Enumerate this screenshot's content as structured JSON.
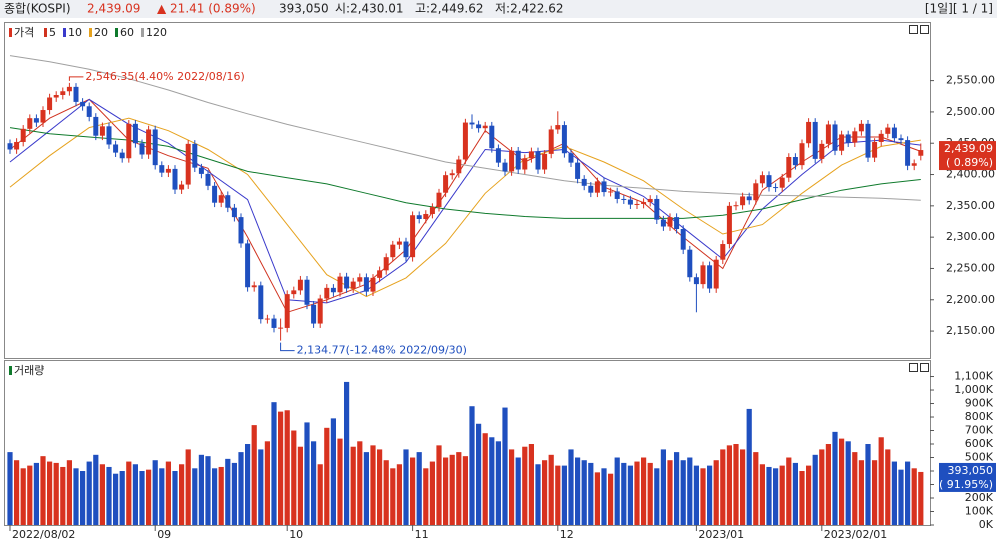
{
  "header": {
    "name": "종합(KOSPI)",
    "price": "2,439.09",
    "change": "▲ 21.41 (0.89%)",
    "volume": "393,050",
    "open": "시:2,430.01",
    "high": "고:2,449.62",
    "low": "저:2,422.62",
    "page": "[1일][ 1 / 1]"
  },
  "chart_data": {
    "type": "candlestick",
    "price_label": "가격",
    "volume_title": "거래량",
    "up_color": "#d8321f",
    "down_color": "#1f4fbf",
    "candles": [
      [
        2450,
        2456,
        2433,
        2440
      ],
      [
        2440,
        2458,
        2433,
        2452
      ],
      [
        2452,
        2479,
        2445,
        2473
      ],
      [
        2473,
        2496,
        2466,
        2490
      ],
      [
        2490,
        2496,
        2476,
        2483
      ],
      [
        2483,
        2509,
        2476,
        2503
      ],
      [
        2503,
        2529,
        2496,
        2523
      ],
      [
        2523,
        2533,
        2516,
        2527
      ],
      [
        2527,
        2539,
        2520,
        2533
      ],
      [
        2533,
        2546.35,
        2526,
        2540
      ],
      [
        2540,
        2546,
        2509,
        2516
      ],
      [
        2516,
        2522,
        2502,
        2509
      ],
      [
        2509,
        2515,
        2485,
        2492
      ],
      [
        2492,
        2498,
        2455,
        2462
      ],
      [
        2462,
        2483,
        2455,
        2477
      ],
      [
        2477,
        2483,
        2441,
        2448
      ],
      [
        2448,
        2454,
        2428,
        2435
      ],
      [
        2435,
        2441,
        2419,
        2426
      ],
      [
        2426,
        2487,
        2419,
        2481
      ],
      [
        2481,
        2487,
        2443,
        2450
      ],
      [
        2450,
        2456,
        2425,
        2432
      ],
      [
        2432,
        2478,
        2425,
        2472
      ],
      [
        2472,
        2478,
        2408,
        2415
      ],
      [
        2415,
        2421,
        2396,
        2403
      ],
      [
        2403,
        2415,
        2396,
        2409
      ],
      [
        2409,
        2415,
        2369,
        2376
      ],
      [
        2376,
        2390,
        2369,
        2384
      ],
      [
        2384,
        2455,
        2377,
        2449
      ],
      [
        2449,
        2455,
        2404,
        2411
      ],
      [
        2411,
        2417,
        2394,
        2401
      ],
      [
        2401,
        2407,
        2375,
        2382
      ],
      [
        2382,
        2388,
        2348,
        2355
      ],
      [
        2355,
        2373,
        2348,
        2367
      ],
      [
        2367,
        2373,
        2340,
        2347
      ],
      [
        2347,
        2353,
        2325,
        2332
      ],
      [
        2332,
        2338,
        2283,
        2290
      ],
      [
        2290,
        2296,
        2213,
        2220
      ],
      [
        2220,
        2229,
        2213,
        2223
      ],
      [
        2223,
        2229,
        2162,
        2169
      ],
      [
        2169,
        2176,
        2162,
        2170
      ],
      [
        2170,
        2176,
        2148,
        2155
      ],
      [
        2155,
        2170,
        2134.77,
        2155.49
      ],
      [
        2155,
        2215,
        2148,
        2209
      ],
      [
        2209,
        2221,
        2202,
        2215
      ],
      [
        2215,
        2238,
        2208,
        2232
      ],
      [
        2232,
        2238,
        2185,
        2192
      ],
      [
        2192,
        2198,
        2155,
        2162
      ],
      [
        2162,
        2208,
        2155,
        2202
      ],
      [
        2202,
        2225,
        2195,
        2219
      ],
      [
        2219,
        2225,
        2205,
        2212
      ],
      [
        2212,
        2243,
        2205,
        2237
      ],
      [
        2237,
        2243,
        2211,
        2218
      ],
      [
        2218,
        2235,
        2211,
        2229
      ],
      [
        2229,
        2242,
        2222,
        2236
      ],
      [
        2236,
        2242,
        2206,
        2213
      ],
      [
        2213,
        2241,
        2206,
        2235
      ],
      [
        2235,
        2253,
        2228,
        2247
      ],
      [
        2247,
        2274,
        2240,
        2268
      ],
      [
        2268,
        2294,
        2261,
        2288
      ],
      [
        2288,
        2299,
        2281,
        2293
      ],
      [
        2293,
        2299,
        2261,
        2268
      ],
      [
        2268,
        2341,
        2261,
        2335
      ],
      [
        2335,
        2341,
        2322,
        2329
      ],
      [
        2329,
        2343,
        2322,
        2337
      ],
      [
        2337,
        2354,
        2330,
        2348
      ],
      [
        2348,
        2377,
        2341,
        2371
      ],
      [
        2371,
        2405,
        2364,
        2399
      ],
      [
        2399,
        2408,
        2392,
        2402
      ],
      [
        2402,
        2430,
        2395,
        2424
      ],
      [
        2424,
        2489,
        2417,
        2483
      ],
      [
        2483,
        2496,
        2473,
        2480
      ],
      [
        2480,
        2486,
        2467,
        2474
      ],
      [
        2474,
        2484,
        2467,
        2478
      ],
      [
        2478,
        2484,
        2435,
        2442
      ],
      [
        2442,
        2448,
        2412,
        2419
      ],
      [
        2419,
        2425,
        2398,
        2405
      ],
      [
        2405,
        2444,
        2398,
        2438
      ],
      [
        2438,
        2444,
        2401,
        2408
      ],
      [
        2408,
        2432,
        2401,
        2426
      ],
      [
        2426,
        2443,
        2419,
        2437
      ],
      [
        2437,
        2443,
        2401,
        2408
      ],
      [
        2408,
        2439,
        2401,
        2433
      ],
      [
        2433,
        2478,
        2426,
        2472
      ],
      [
        2472,
        2501,
        2465,
        2479
      ],
      [
        2479,
        2485,
        2427,
        2434
      ],
      [
        2434,
        2440,
        2412,
        2419
      ],
      [
        2419,
        2425,
        2386,
        2393
      ],
      [
        2393,
        2399,
        2375,
        2382
      ],
      [
        2382,
        2388,
        2364,
        2371
      ],
      [
        2371,
        2395,
        2364,
        2389
      ],
      [
        2389,
        2395,
        2365,
        2372
      ],
      [
        2372,
        2379,
        2365,
        2373
      ],
      [
        2373,
        2379,
        2354,
        2361
      ],
      [
        2361,
        2367,
        2353,
        2360
      ],
      [
        2360,
        2366,
        2345,
        2352
      ],
      [
        2352,
        2359,
        2345,
        2353
      ],
      [
        2353,
        2362,
        2346,
        2356
      ],
      [
        2356,
        2367,
        2349,
        2361
      ],
      [
        2361,
        2367,
        2321,
        2328
      ],
      [
        2328,
        2334,
        2310,
        2317
      ],
      [
        2317,
        2338,
        2310,
        2332
      ],
      [
        2332,
        2338,
        2306,
        2313
      ],
      [
        2313,
        2319,
        2273,
        2280
      ],
      [
        2280,
        2286,
        2229,
        2236
      ],
      [
        2236,
        2242,
        2180,
        2225
      ],
      [
        2225,
        2261,
        2218,
        2255
      ],
      [
        2255,
        2261,
        2211,
        2218
      ],
      [
        2218,
        2270,
        2211,
        2264
      ],
      [
        2264,
        2295,
        2257,
        2289
      ],
      [
        2289,
        2356,
        2282,
        2350
      ],
      [
        2350,
        2357,
        2343,
        2351
      ],
      [
        2351,
        2371,
        2344,
        2365
      ],
      [
        2365,
        2371,
        2352,
        2359
      ],
      [
        2359,
        2392,
        2352,
        2386
      ],
      [
        2386,
        2405,
        2379,
        2399
      ],
      [
        2399,
        2405,
        2373,
        2380
      ],
      [
        2380,
        2386,
        2372,
        2379
      ],
      [
        2379,
        2401,
        2372,
        2395
      ],
      [
        2395,
        2434,
        2388,
        2428
      ],
      [
        2428,
        2434,
        2408,
        2415
      ],
      [
        2415,
        2456,
        2408,
        2450
      ],
      [
        2450,
        2490,
        2443,
        2484
      ],
      [
        2484,
        2490,
        2418,
        2425
      ],
      [
        2425,
        2455,
        2418,
        2449
      ],
      [
        2449,
        2486,
        2442,
        2480
      ],
      [
        2480,
        2486,
        2431,
        2438
      ],
      [
        2438,
        2470,
        2431,
        2464
      ],
      [
        2464,
        2470,
        2444,
        2451
      ],
      [
        2451,
        2475,
        2444,
        2469
      ],
      [
        2469,
        2487,
        2462,
        2481
      ],
      [
        2481,
        2487,
        2420,
        2427
      ],
      [
        2427,
        2458,
        2420,
        2452
      ],
      [
        2452,
        2471,
        2445,
        2465
      ],
      [
        2465,
        2481,
        2458,
        2475
      ],
      [
        2475,
        2481,
        2451,
        2458
      ],
      [
        2458,
        2464,
        2448,
        2455
      ],
      [
        2455,
        2461,
        2407,
        2414
      ],
      [
        2414,
        2424,
        2407,
        2418
      ],
      [
        2430.01,
        2449.62,
        2422.62,
        2439.09
      ]
    ],
    "volume": [
      540000,
      480000,
      420000,
      440000,
      460000,
      510000,
      470000,
      460000,
      430000,
      480000,
      420000,
      400000,
      470000,
      520000,
      450000,
      430000,
      380000,
      400000,
      470000,
      450000,
      400000,
      410000,
      480000,
      420000,
      470000,
      400000,
      450000,
      560000,
      420000,
      520000,
      510000,
      420000,
      430000,
      490000,
      460000,
      540000,
      600000,
      740000,
      560000,
      620000,
      910000,
      840000,
      850000,
      700000,
      580000,
      760000,
      620000,
      450000,
      720000,
      790000,
      640000,
      1060000,
      580000,
      620000,
      540000,
      590000,
      560000,
      480000,
      420000,
      450000,
      560000,
      500000,
      540000,
      420000,
      470000,
      590000,
      500000,
      520000,
      540000,
      510000,
      880000,
      750000,
      680000,
      650000,
      620000,
      870000,
      560000,
      500000,
      580000,
      600000,
      450000,
      480000,
      520000,
      440000,
      440000,
      560000,
      500000,
      480000,
      460000,
      390000,
      420000,
      380000,
      500000,
      460000,
      440000,
      470000,
      500000,
      460000,
      420000,
      560000,
      480000,
      540000,
      480000,
      500000,
      440000,
      420000,
      440000,
      480000,
      560000,
      590000,
      600000,
      560000,
      860000,
      540000,
      450000,
      430000,
      420000,
      440000,
      500000,
      460000,
      400000,
      440000,
      520000,
      560000,
      600000,
      690000,
      640000,
      620000,
      540000,
      480000,
      600000,
      480000,
      650000,
      560000,
      470000,
      410000,
      470000,
      420000,
      393050
    ],
    "ma_x": [
      0,
      6,
      12,
      18,
      24,
      30,
      36,
      42,
      48,
      54,
      60,
      66,
      72,
      78,
      84,
      90,
      96,
      102,
      108,
      114,
      120,
      126,
      132,
      138
    ],
    "moving_averages": [
      {
        "name": "5",
        "color": "#d0321f",
        "values": [
          2440,
          2490,
          2520,
          2455,
          2430,
          2410,
          2300,
          2180,
          2200,
          2225,
          2280,
          2370,
          2470,
          2420,
          2450,
          2380,
          2355,
          2300,
          2250,
          2375,
          2420,
          2460,
          2460,
          2437
        ]
      },
      {
        "name": "10",
        "color": "#3a3acb",
        "values": [
          2420,
          2470,
          2520,
          2480,
          2450,
          2405,
          2360,
          2200,
          2195,
          2215,
          2260,
          2350,
          2440,
          2435,
          2440,
          2395,
          2365,
          2315,
          2265,
          2345,
          2400,
          2450,
          2455,
          2447
        ]
      },
      {
        "name": "20",
        "color": "#e6a21e",
        "values": [
          2380,
          2430,
          2475,
          2490,
          2470,
          2440,
          2400,
          2320,
          2240,
          2205,
          2235,
          2290,
          2370,
          2425,
          2445,
          2420,
          2390,
          2345,
          2305,
          2320,
          2370,
          2415,
          2445,
          2455
        ]
      },
      {
        "name": "60",
        "color": "#0f7a2c",
        "values": [
          2475,
          2465,
          2460,
          2455,
          2445,
          2425,
          2405,
          2395,
          2385,
          2370,
          2355,
          2345,
          2338,
          2333,
          2330,
          2330,
          2330,
          2330,
          2335,
          2345,
          2360,
          2375,
          2385,
          2392
        ]
      },
      {
        "name": "120",
        "color": "#a0a0a0",
        "values": [
          2590,
          2580,
          2568,
          2553,
          2535,
          2515,
          2497,
          2480,
          2465,
          2450,
          2435,
          2420,
          2410,
          2400,
          2390,
          2383,
          2378,
          2373,
          2370,
          2367,
          2366,
          2364,
          2362,
          2359
        ]
      }
    ],
    "ylim": [
      2107,
      2642
    ],
    "yticks": [
      {
        "value": 2150,
        "label": "2,150.00"
      },
      {
        "value": 2200,
        "label": "2,200.00"
      },
      {
        "value": 2250,
        "label": "2,250.00"
      },
      {
        "value": 2300,
        "label": "2,300.00"
      },
      {
        "value": 2350,
        "label": "2,350.00"
      },
      {
        "value": 2400,
        "label": "2,400.00"
      },
      {
        "value": 2450,
        "label": "2,450.00"
      },
      {
        "value": 2500,
        "label": "2,500.00"
      },
      {
        "value": 2550,
        "label": "2,550.00"
      }
    ],
    "vol_ylim": [
      0,
      1215000
    ],
    "vol_yticks": [
      {
        "value": 0,
        "label": "0K"
      },
      {
        "value": 100000,
        "label": "100K"
      },
      {
        "value": 200000,
        "label": "200K"
      },
      {
        "value": 300000,
        "label": "300K"
      },
      {
        "value": 400000,
        "label": "400K"
      },
      {
        "value": 500000,
        "label": "500K"
      },
      {
        "value": 600000,
        "label": "600K"
      },
      {
        "value": 700000,
        "label": "700K"
      },
      {
        "value": 800000,
        "label": "800K"
      },
      {
        "value": 900000,
        "label": "900K"
      },
      {
        "value": 1000000,
        "label": "1,000K"
      },
      {
        "value": 1100000,
        "label": "1,100K"
      }
    ],
    "xticks": [
      {
        "value": 0,
        "label": "2022/08/02"
      },
      {
        "value": 22,
        "label": "09"
      },
      {
        "value": 42,
        "label": "10"
      },
      {
        "value": 61,
        "label": "11"
      },
      {
        "value": 83,
        "label": "12"
      },
      {
        "value": 104,
        "label": "2023/01"
      },
      {
        "value": 123,
        "label": "2023/02/01"
      }
    ],
    "annotations": [
      {
        "text": "2,546.35(4.40% 2022/08/16)",
        "index": 9,
        "value": 2546.35
      },
      {
        "text": "2,134.77(-12.48% 2022/09/30)",
        "index": 41,
        "value": 2134.77
      }
    ],
    "last_price": {
      "index": 138,
      "value": 2439.09,
      "label": "2,439.09",
      "pct": "( 0.89%)"
    },
    "last_volume": {
      "value": 393050,
      "label": "393,050",
      "pct": "( 91.95%)"
    }
  }
}
